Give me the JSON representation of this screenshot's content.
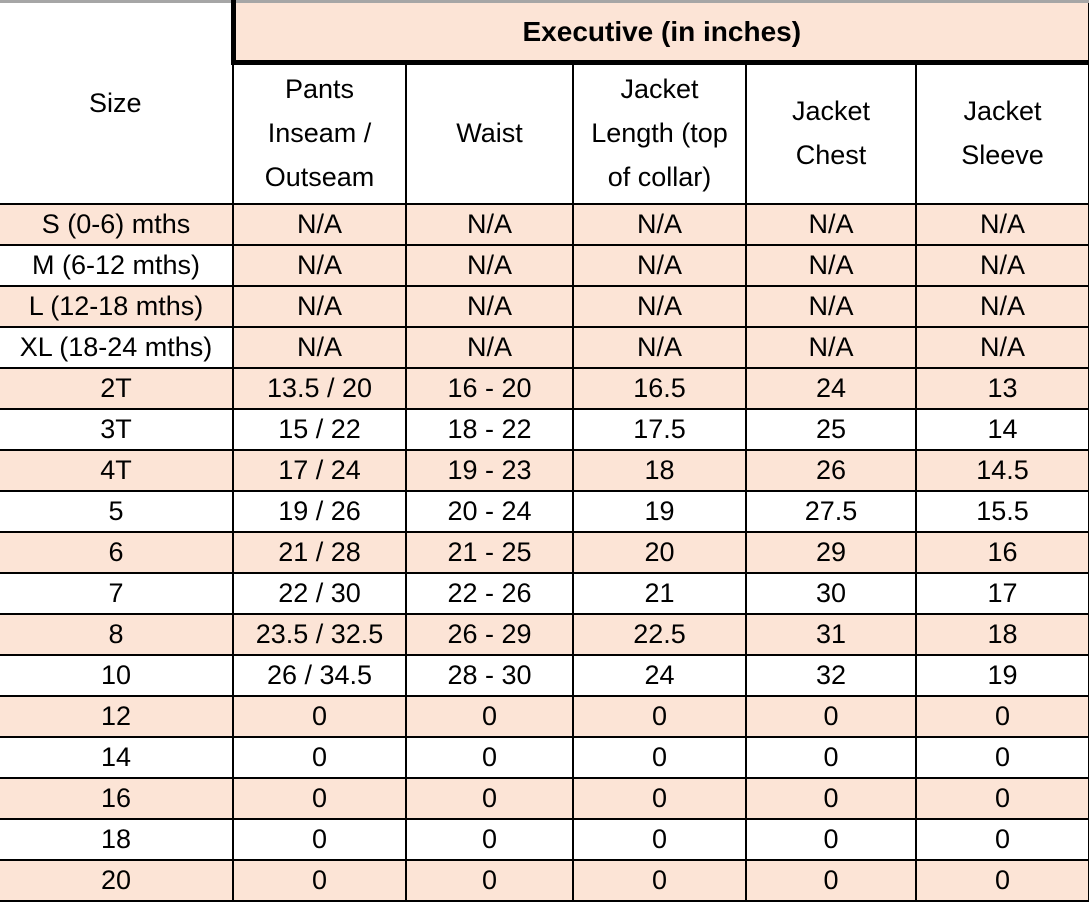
{
  "chart_data": {
    "type": "table",
    "title": "Executive (in inches)",
    "columns": [
      "Size",
      "Pants Inseam / Outseam",
      "Waist",
      "Jacket Length (top of collar)",
      "Jacket Chest",
      "Jacket Sleeve"
    ],
    "rows": [
      [
        "S (0-6) mths",
        "N/A",
        "N/A",
        "N/A",
        "N/A",
        "N/A"
      ],
      [
        "M (6-12 mths)",
        "N/A",
        "N/A",
        "N/A",
        "N/A",
        "N/A"
      ],
      [
        "L (12-18 mths)",
        "N/A",
        "N/A",
        "N/A",
        "N/A",
        "N/A"
      ],
      [
        "XL (18-24 mths)",
        "N/A",
        "N/A",
        "N/A",
        "N/A",
        "N/A"
      ],
      [
        "2T",
        "13.5 / 20",
        "16 - 20",
        "16.5",
        "24",
        "13"
      ],
      [
        "3T",
        "15 / 22",
        "18 - 22",
        "17.5",
        "25",
        "14"
      ],
      [
        "4T",
        "17 / 24",
        "19 - 23",
        "18",
        "26",
        "14.5"
      ],
      [
        "5",
        "19 / 26",
        "20 - 24",
        "19",
        "27.5",
        "15.5"
      ],
      [
        "6",
        "21 / 28",
        "21 - 25",
        "20",
        "29",
        "16"
      ],
      [
        "7",
        "22 / 30",
        "22 - 26",
        "21",
        "30",
        "17"
      ],
      [
        "8",
        "23.5 / 32.5",
        "26 - 29",
        "22.5",
        "31",
        "18"
      ],
      [
        "10",
        "26 / 34.5",
        "28 - 30",
        "24",
        "32",
        "19"
      ],
      [
        "12",
        "0",
        "0",
        "0",
        "0",
        "0"
      ],
      [
        "14",
        "0",
        "0",
        "0",
        "0",
        "0"
      ],
      [
        "16",
        "0",
        "0",
        "0",
        "0",
        "0"
      ],
      [
        "18",
        "0",
        "0",
        "0",
        "0",
        "0"
      ],
      [
        "20",
        "0",
        "0",
        "0",
        "0",
        "0"
      ]
    ]
  },
  "table": {
    "size_header": "Size",
    "group_header": "Executive (in inches)",
    "measure_columns_display": [
      "Pants\nInseam /\nOutseam",
      "Waist",
      "Jacket\nLength (top\nof collar)",
      "Jacket\nChest",
      "Jacket\nSleeve"
    ]
  },
  "colors": {
    "shaded_bg": "#fce4d6",
    "grid": "#000000",
    "top_edge": "#a6a6a6",
    "text": "#000000"
  }
}
